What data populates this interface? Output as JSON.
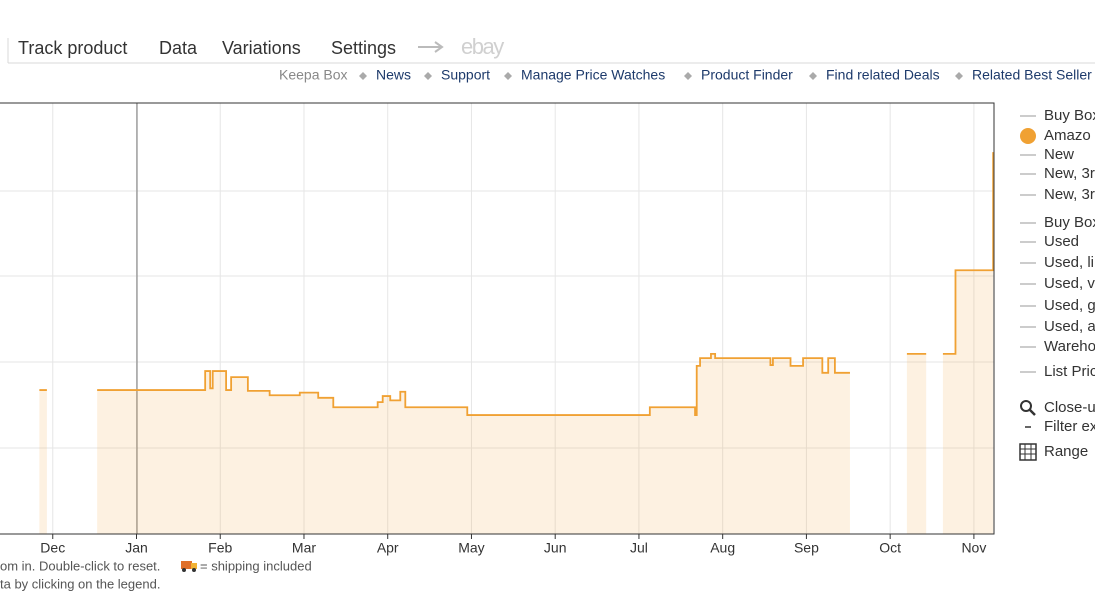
{
  "nav": {
    "tabs": [
      "Track product",
      "Data",
      "Variations",
      "Settings"
    ],
    "ebay": "ebay"
  },
  "links": [
    "Keepa Box",
    "News",
    "Support",
    "Manage Price Watches",
    "Product Finder",
    "Find related Deals",
    "Related Best Seller"
  ],
  "legend": [
    "Buy Box",
    "New",
    "New, 3r",
    "New, 3r",
    "Buy Box",
    "Used",
    "Used, li",
    "Used, v",
    "Used, g",
    "Used, a",
    "Wareho",
    "List Pric"
  ],
  "tools": [
    "Close-u",
    "Filter ex",
    "Range"
  ],
  "notes": [
    "om in. Double-click to reset.",
    "= shipping included",
    "ta by clicking on the legend."
  ],
  "chart_data": {
    "type": "line",
    "xlim": [
      -0.63,
      11.24
    ],
    "ylim": [
      0,
      5
    ],
    "xticks": [
      {
        "value": 0,
        "label": "Dec"
      },
      {
        "value": 1,
        "label": "Jan"
      },
      {
        "value": 2,
        "label": "Feb"
      },
      {
        "value": 3,
        "label": "Mar"
      },
      {
        "value": 4,
        "label": "Apr"
      },
      {
        "value": 5,
        "label": "May"
      },
      {
        "value": 6,
        "label": "Jun"
      },
      {
        "value": 7,
        "label": "Jul"
      },
      {
        "value": 8,
        "label": "Aug"
      },
      {
        "value": 9,
        "label": "Sep"
      },
      {
        "value": 10,
        "label": "Oct"
      },
      {
        "value": 11,
        "label": "Nov"
      }
    ],
    "series": [
      {
        "name": "Amazo",
        "color": "#f0a133",
        "x": [
          -0.16,
          -0.07,
          0.2,
          0.53,
          1.82,
          1.82,
          1.88,
          1.88,
          1.91,
          1.91,
          2.07,
          2.07,
          2.13,
          2.13,
          2.33,
          2.33,
          2.59,
          2.59,
          2.95,
          2.95,
          3.17,
          3.17,
          3.35,
          3.35,
          3.88,
          3.88,
          3.94,
          3.94,
          4.03,
          4.03,
          4.15,
          4.15,
          4.21,
          4.21,
          4.95,
          4.95,
          7.13,
          7.13,
          7.67,
          7.67,
          7.69,
          7.69,
          7.73,
          7.73,
          7.86,
          7.86,
          7.91,
          7.91,
          8.57,
          8.57,
          8.6,
          8.6,
          8.81,
          8.81,
          8.96,
          8.96,
          9.19,
          9.19,
          9.26,
          9.26,
          9.34,
          9.34,
          9.52,
          9.8,
          10.2,
          10.43,
          10.5,
          10.63,
          10.78,
          10.78,
          11.23,
          11.23
        ],
        "values": [
          1.67,
          1.67,
          null,
          1.67,
          1.67,
          1.89,
          1.89,
          1.69,
          1.69,
          1.89,
          1.89,
          1.67,
          1.67,
          1.82,
          1.82,
          1.66,
          1.66,
          1.61,
          1.61,
          1.64,
          1.64,
          1.58,
          1.58,
          1.47,
          1.47,
          1.53,
          1.53,
          1.6,
          1.6,
          1.55,
          1.55,
          1.65,
          1.65,
          1.47,
          1.47,
          1.38,
          1.38,
          1.47,
          1.47,
          1.38,
          1.38,
          1.95,
          1.95,
          2.04,
          2.04,
          2.09,
          2.09,
          2.04,
          2.04,
          1.96,
          1.96,
          2.04,
          2.04,
          1.95,
          1.95,
          2.04,
          2.04,
          1.87,
          1.87,
          2.04,
          2.04,
          1.87,
          1.87,
          null,
          2.09,
          2.09,
          null,
          2.09,
          2.09,
          3.06,
          3.06,
          4.43
        ]
      }
    ]
  }
}
